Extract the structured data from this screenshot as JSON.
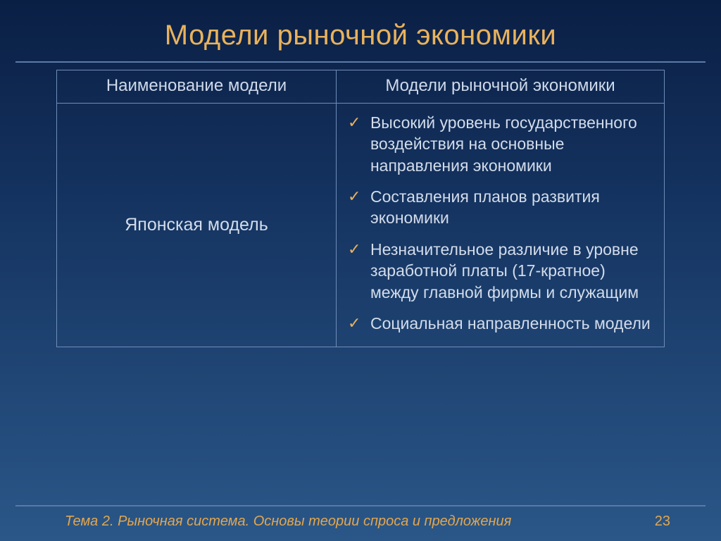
{
  "colors": {
    "title": "#e9b25c",
    "underline": "#5b7aa6",
    "border": "#6f8db8",
    "header_text": "#cfd9ea",
    "body_text": "#d3dcea",
    "check": "#e9b25c",
    "footer_text": "#e3a64e",
    "pagenum": "#e3a64e"
  },
  "slide": {
    "title": "Модели рыночной экономики",
    "table": {
      "headers": [
        "Наименование модели",
        "Модели рыночной экономики"
      ],
      "model_name": "Японская модель",
      "features": [
        "Высокий уровень государственного воздействия на основные направления экономики",
        "Составления планов развития экономики",
        "Незначительное различие в уровне заработной платы (17-кратное) между главной фирмы и служащим",
        "Социальная направленность модели"
      ]
    },
    "footer": "Тема 2. Рыночная система. Основы теории спроса и предложения",
    "page": "23"
  }
}
